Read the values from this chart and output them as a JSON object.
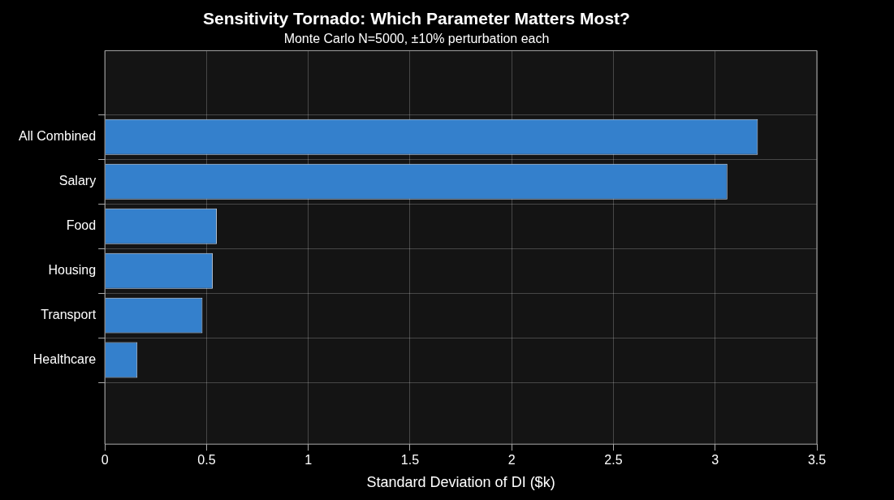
{
  "chart_data": {
    "type": "bar",
    "orientation": "horizontal",
    "title": "Sensitivity Tornado: Which Parameter Matters Most?",
    "subtitle": "Monte Carlo N=5000, ±10% perturbation each",
    "xlabel": "Standard Deviation of DI ($k)",
    "categories": [
      "All Combined",
      "Salary",
      "Food",
      "Housing",
      "Transport",
      "Healthcare"
    ],
    "values": [
      3.21,
      3.06,
      0.55,
      0.53,
      0.48,
      0.16
    ],
    "color": "#3480cc",
    "xlim": [
      0,
      3.5
    ],
    "xticks": [
      0,
      0.5,
      1,
      1.5,
      2,
      2.5,
      3,
      3.5
    ],
    "grid": true,
    "legend": false
  }
}
